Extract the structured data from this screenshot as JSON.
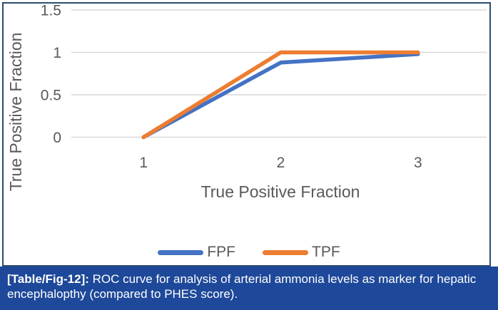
{
  "figure": {
    "frame_border_color": "#2d4e6e",
    "caption": {
      "prefix": "[Table/Fig-12]:",
      "text": "ROC curve for analysis of arterial ammonia levels as marker for hepatic encephalopthy (compared to PHES score).",
      "bg_color": "#1e4899",
      "text_color": "#ffffff"
    }
  },
  "chart_data": {
    "type": "line",
    "categories": [
      "1",
      "2",
      "3"
    ],
    "series": [
      {
        "name": "FPF",
        "color": "#4472C4",
        "values": [
          0,
          0.88,
          0.98
        ]
      },
      {
        "name": "TPF",
        "color": "#ED7D31",
        "values": [
          0,
          1,
          1
        ]
      }
    ],
    "xlabel": "True Positive Fraction",
    "ylabel": "True Positive Fraction",
    "ylim": [
      0,
      1.5
    ],
    "yticks": [
      0,
      0.5,
      1,
      1.5
    ],
    "grid": "horizontal",
    "gridline_color": "#d9d9d9",
    "axis_text_color": "#595959",
    "legend_position": "bottom"
  }
}
